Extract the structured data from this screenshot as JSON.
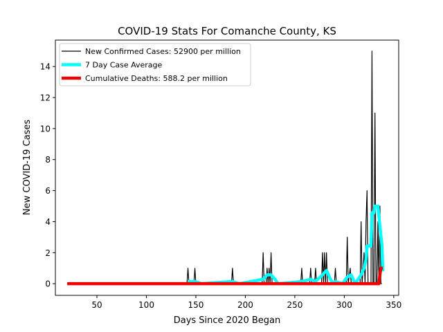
{
  "chart_data": {
    "type": "line",
    "title": "COVID-19 Stats For Comanche County, KS",
    "xlabel": "Days Since 2020 Began",
    "ylabel": "New COVID-19 Cases",
    "xlim": [
      8,
      355
    ],
    "ylim": [
      -0.75,
      15.7
    ],
    "xticks": [
      50,
      100,
      150,
      200,
      250,
      300,
      350
    ],
    "yticks": [
      0,
      2,
      4,
      6,
      8,
      10,
      12,
      14
    ],
    "grid": false,
    "legend_position": "top-left",
    "series": [
      {
        "name": "New Confirmed Cases: 52900 per million",
        "color": "#000000",
        "points": [
          [
            20,
            0
          ],
          [
            141,
            0
          ],
          [
            142,
            1
          ],
          [
            143,
            0
          ],
          [
            148,
            0
          ],
          [
            149,
            1
          ],
          [
            150,
            0
          ],
          [
            186,
            0
          ],
          [
            187,
            1
          ],
          [
            188,
            0
          ],
          [
            217,
            0
          ],
          [
            218,
            2
          ],
          [
            219,
            0
          ],
          [
            221,
            0
          ],
          [
            222,
            1
          ],
          [
            223,
            0
          ],
          [
            224,
            1
          ],
          [
            225,
            0
          ],
          [
            226,
            2
          ],
          [
            227,
            0
          ],
          [
            256,
            0
          ],
          [
            257,
            1
          ],
          [
            258,
            0
          ],
          [
            265,
            0
          ],
          [
            266,
            1
          ],
          [
            267,
            0
          ],
          [
            270,
            0
          ],
          [
            271,
            1
          ],
          [
            272,
            0
          ],
          [
            277,
            0
          ],
          [
            278,
            2
          ],
          [
            279,
            0
          ],
          [
            280,
            2
          ],
          [
            281,
            0
          ],
          [
            282,
            2
          ],
          [
            283,
            0
          ],
          [
            290,
            0
          ],
          [
            291,
            1
          ],
          [
            292,
            0
          ],
          [
            302,
            0
          ],
          [
            303,
            3
          ],
          [
            304,
            0
          ],
          [
            306,
            1
          ],
          [
            307,
            0
          ],
          [
            316,
            0
          ],
          [
            317,
            4
          ],
          [
            318,
            0
          ],
          [
            320,
            2
          ],
          [
            321,
            0
          ],
          [
            322,
            4
          ],
          [
            323,
            6
          ],
          [
            324,
            0
          ],
          [
            327,
            0
          ],
          [
            328,
            15
          ],
          [
            329,
            0
          ],
          [
            330,
            0
          ],
          [
            331,
            11
          ],
          [
            332,
            0
          ],
          [
            333,
            0
          ],
          [
            334,
            4
          ],
          [
            335,
            0
          ],
          [
            336,
            5
          ],
          [
            337,
            0
          ],
          [
            338,
            0
          ]
        ]
      },
      {
        "name": "7 Day Case Average",
        "color": "#00ffff",
        "points": [
          [
            142,
            0.143
          ],
          [
            149,
            0.143
          ],
          [
            156,
            0
          ],
          [
            187,
            0.143
          ],
          [
            194,
            0
          ],
          [
            218,
            0.286
          ],
          [
            222,
            0.571
          ],
          [
            226,
            0.571
          ],
          [
            230,
            0.286
          ],
          [
            233,
            0
          ],
          [
            257,
            0.143
          ],
          [
            266,
            0.286
          ],
          [
            271,
            0.143
          ],
          [
            278,
            0.571
          ],
          [
            282,
            0.857
          ],
          [
            286,
            0.286
          ],
          [
            289,
            0
          ],
          [
            291,
            0.143
          ],
          [
            298,
            0
          ],
          [
            303,
            0.429
          ],
          [
            307,
            0.571
          ],
          [
            311,
            0
          ],
          [
            317,
            0.571
          ],
          [
            320,
            1.0
          ],
          [
            322,
            1.571
          ],
          [
            323,
            2.43
          ],
          [
            327,
            2.43
          ],
          [
            328,
            4.57
          ],
          [
            330,
            4.57
          ],
          [
            331,
            5.0
          ],
          [
            334,
            5.0
          ],
          [
            336,
            3.7
          ],
          [
            338,
            2.5
          ],
          [
            339,
            0.8
          ]
        ]
      },
      {
        "name": "Cumulative Deaths: 588.2 per million",
        "color": "#ee0000",
        "points": [
          [
            20,
            0
          ],
          [
            335,
            0
          ],
          [
            336,
            0.6
          ],
          [
            337,
            1.0
          ],
          [
            339,
            1.0
          ]
        ]
      }
    ]
  }
}
